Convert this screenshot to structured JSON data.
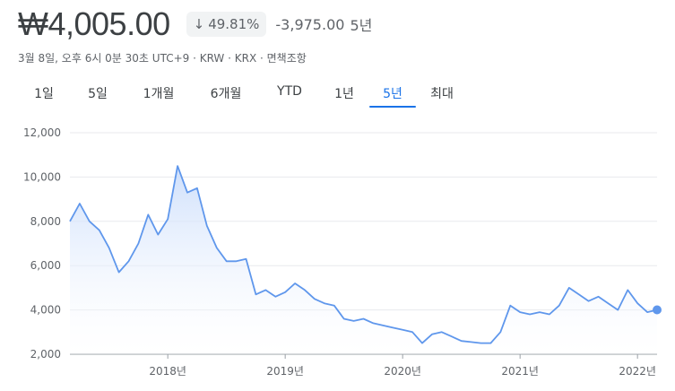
{
  "header": {
    "price": "₩4,005.00",
    "change_pct": "49.81%",
    "change_icon": "arrow-down-icon",
    "change_abs": "-3,975.00",
    "period": "5년"
  },
  "meta": "3월 8일, 오후 6시 0분 30초 UTC+9 · KRW · KRX · 면책조항",
  "tabs": [
    "1일",
    "5일",
    "1개월",
    "6개월",
    "YTD",
    "1년",
    "5년",
    "최대"
  ],
  "active_tab": 6,
  "colors": {
    "line": "#5f97ec",
    "accent": "#1a73e8",
    "fill": "#dbe8fc"
  },
  "chart_data": {
    "type": "area",
    "ylim": [
      2000,
      12000
    ],
    "yticks": [
      "12,000",
      "10,000",
      "8,000",
      "6,000",
      "4,000",
      "2,000"
    ],
    "xticks": [
      "2018년",
      "2019년",
      "2020년",
      "2021년",
      "2022년"
    ],
    "xlim": [
      "2017-03",
      "2022-03"
    ],
    "grid": true,
    "points": [
      [
        "2017-03",
        8000
      ],
      [
        "2017-04",
        8800
      ],
      [
        "2017-05",
        8000
      ],
      [
        "2017-06",
        7600
      ],
      [
        "2017-07",
        6800
      ],
      [
        "2017-08",
        5700
      ],
      [
        "2017-09",
        6200
      ],
      [
        "2017-10",
        7000
      ],
      [
        "2017-11",
        8300
      ],
      [
        "2017-12",
        7400
      ],
      [
        "2018-01",
        8100
      ],
      [
        "2018-02",
        10500
      ],
      [
        "2018-03",
        9300
      ],
      [
        "2018-04",
        9500
      ],
      [
        "2018-05",
        7800
      ],
      [
        "2018-06",
        6800
      ],
      [
        "2018-07",
        6200
      ],
      [
        "2018-08",
        6200
      ],
      [
        "2018-09",
        6300
      ],
      [
        "2018-10",
        4700
      ],
      [
        "2018-11",
        4900
      ],
      [
        "2018-12",
        4600
      ],
      [
        "2019-01",
        4800
      ],
      [
        "2019-02",
        5200
      ],
      [
        "2019-03",
        4900
      ],
      [
        "2019-04",
        4500
      ],
      [
        "2019-05",
        4300
      ],
      [
        "2019-06",
        4200
      ],
      [
        "2019-07",
        3600
      ],
      [
        "2019-08",
        3500
      ],
      [
        "2019-09",
        3600
      ],
      [
        "2019-10",
        3400
      ],
      [
        "2019-11",
        3300
      ],
      [
        "2019-12",
        3200
      ],
      [
        "2020-01",
        3100
      ],
      [
        "2020-02",
        3000
      ],
      [
        "2020-03",
        2500
      ],
      [
        "2020-04",
        2900
      ],
      [
        "2020-05",
        3000
      ],
      [
        "2020-06",
        2800
      ],
      [
        "2020-07",
        2600
      ],
      [
        "2020-08",
        2550
      ],
      [
        "2020-09",
        2500
      ],
      [
        "2020-10",
        2500
      ],
      [
        "2020-11",
        3000
      ],
      [
        "2020-12",
        4200
      ],
      [
        "2021-01",
        3900
      ],
      [
        "2021-02",
        3800
      ],
      [
        "2021-03",
        3900
      ],
      [
        "2021-04",
        3800
      ],
      [
        "2021-05",
        4200
      ],
      [
        "2021-06",
        5000
      ],
      [
        "2021-07",
        4700
      ],
      [
        "2021-08",
        4400
      ],
      [
        "2021-09",
        4600
      ],
      [
        "2021-10",
        4300
      ],
      [
        "2021-11",
        4000
      ],
      [
        "2021-12",
        4900
      ],
      [
        "2022-01",
        4300
      ],
      [
        "2022-02",
        3900
      ],
      [
        "2022-03",
        4005
      ]
    ]
  }
}
